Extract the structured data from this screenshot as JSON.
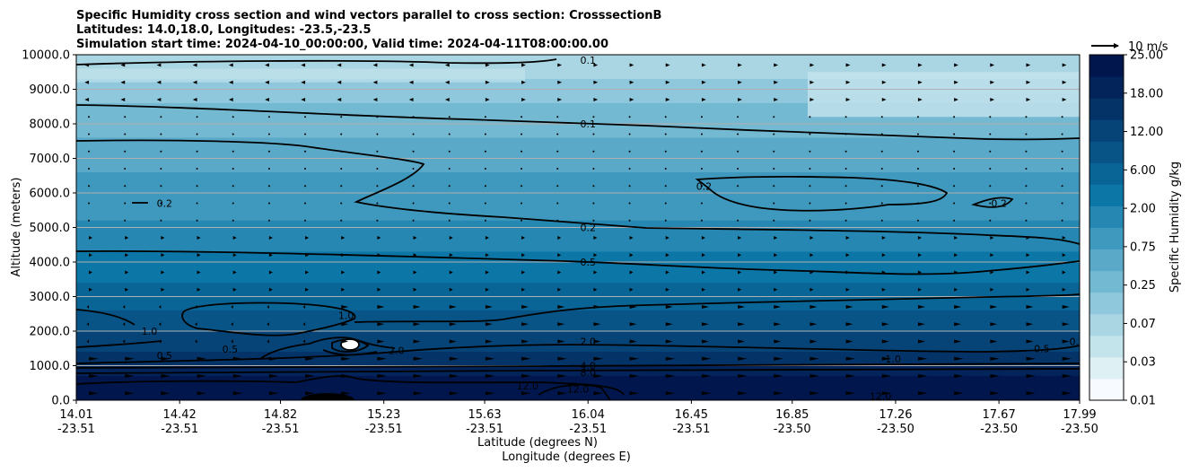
{
  "chart_data": {
    "type": "contour",
    "title_lines": [
      "Specific Humidity cross section and wind vectors parallel to cross section: CrosssectionB",
      "Latitudes: 14.0,18.0, Longitudes: -23.5,-23.5",
      "Simulation start time: 2024-04-10_00:00:00, Valid time: 2024-04-11T08:00:00.00"
    ],
    "ylabel": "Altitude (meters)",
    "xlabel_lat": "Latitude (degrees N)",
    "xlabel_lon": "Longitude (degrees E)",
    "ylim": [
      0,
      10000
    ],
    "yticks": [
      "0.0",
      "1000.0",
      "2000.0",
      "3000.0",
      "4000.0",
      "5000.0",
      "6000.0",
      "7000.0",
      "8000.0",
      "9000.0",
      "10000.0"
    ],
    "xlim": [
      14.01,
      17.99
    ],
    "xticks": [
      {
        "lat": "14.01",
        "lon": "-23.51",
        "v": 14.01
      },
      {
        "lat": "14.42",
        "lon": "-23.51",
        "v": 14.42
      },
      {
        "lat": "14.82",
        "lon": "-23.51",
        "v": 14.82
      },
      {
        "lat": "15.23",
        "lon": "-23.51",
        "v": 15.23
      },
      {
        "lat": "15.63",
        "lon": "-23.51",
        "v": 15.63
      },
      {
        "lat": "16.04",
        "lon": "-23.51",
        "v": 16.04
      },
      {
        "lat": "16.45",
        "lon": "-23.51",
        "v": 16.45
      },
      {
        "lat": "16.85",
        "lon": "-23.50",
        "v": 16.85
      },
      {
        "lat": "17.26",
        "lon": "-23.50",
        "v": 17.26
      },
      {
        "lat": "17.67",
        "lon": "-23.50",
        "v": 17.67
      },
      {
        "lat": "17.99",
        "lon": "-23.50",
        "v": 17.99
      }
    ],
    "colorbar": {
      "label": "Specific Humidity g/kg",
      "tick_labels": [
        "0.01",
        "0.03",
        "0.07",
        "0.25",
        "0.75",
        "2.00",
        "6.00",
        "12.00",
        "18.00",
        "25.00"
      ],
      "colors": [
        "#f7fbff",
        "#dff0f4",
        "#c4e4ec",
        "#aad6e4",
        "#8fc8dc",
        "#74b9d2",
        "#5aa9c8",
        "#3f98bd",
        "#2587b2",
        "#0c76a6",
        "#0a6597",
        "#085487",
        "#064377",
        "#043368",
        "#02245a",
        "#00164d"
      ]
    },
    "wind_key": "10 m/s",
    "contour_labels": [
      {
        "text": "0.1",
        "x": 16.04,
        "y": 9850
      },
      {
        "text": "0.1",
        "x": 16.04,
        "y": 8000
      },
      {
        "text": "0.2",
        "x": 14.36,
        "y": 5700
      },
      {
        "text": "0.2",
        "x": 16.5,
        "y": 6200
      },
      {
        "text": "0.2",
        "x": 17.67,
        "y": 5700
      },
      {
        "text": "0.2",
        "x": 16.04,
        "y": 5000
      },
      {
        "text": "0.5",
        "x": 16.04,
        "y": 4000
      },
      {
        "text": "1.0",
        "x": 14.3,
        "y": 2000
      },
      {
        "text": "1.0",
        "x": 15.08,
        "y": 2450
      },
      {
        "text": "0.5",
        "x": 14.62,
        "y": 1480
      },
      {
        "text": "0.5",
        "x": 14.36,
        "y": 1300
      },
      {
        "text": "2.0",
        "x": 15.28,
        "y": 1440
      },
      {
        "text": "2.0",
        "x": 16.04,
        "y": 1700
      },
      {
        "text": "4.0",
        "x": 16.04,
        "y": 1000
      },
      {
        "text": "8.0",
        "x": 16.04,
        "y": 800
      },
      {
        "text": "12.0",
        "x": 15.8,
        "y": 420
      },
      {
        "text": "12.0",
        "x": 16.0,
        "y": 330
      },
      {
        "text": "1.0",
        "x": 17.25,
        "y": 1200
      },
      {
        "text": "12.0",
        "x": 17.2,
        "y": 120
      },
      {
        "text": "0.5",
        "x": 17.84,
        "y": 1500
      },
      {
        "text": "0.2",
        "x": 17.98,
        "y": 1700
      }
    ]
  }
}
